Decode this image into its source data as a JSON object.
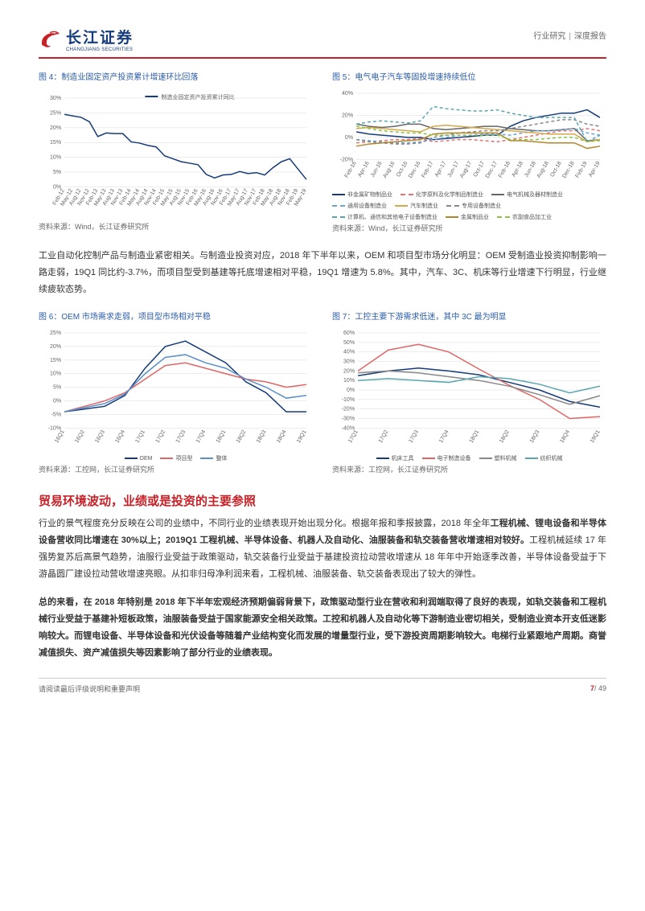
{
  "header": {
    "logo_cn": "长江证券",
    "logo_en": "CHANGJIANG SECURITIES",
    "doc_type_a": "行业研究",
    "doc_type_b": "深度报告"
  },
  "figure4": {
    "title": "图 4：制造业固定资产投资累计增速环比回落",
    "series_label": "制造业固定资产投资累计同比",
    "series_color": "#153b7a",
    "type": "line",
    "ylim": [
      0,
      30
    ],
    "ytick_step": 5,
    "x_labels": [
      "Feb-12",
      "May-12",
      "Aug-12",
      "Nov-12",
      "Feb-13",
      "May-13",
      "Aug-13",
      "Nov-13",
      "Feb-14",
      "May-14",
      "Aug-14",
      "Nov-14",
      "Feb-15",
      "May-15",
      "Aug-15",
      "Nov-15",
      "Feb-16",
      "May-16",
      "Aug-16",
      "Nov-16",
      "Feb-17",
      "May-17",
      "Aug-17",
      "Nov-17",
      "Feb-18",
      "May-18",
      "Aug-18",
      "Nov-18",
      "Feb-19",
      "May-19"
    ],
    "values": [
      24.5,
      24.0,
      23.5,
      22.0,
      17.0,
      18.2,
      18.0,
      18.0,
      15.2,
      14.8,
      14.0,
      13.5,
      10.5,
      9.5,
      8.5,
      8.0,
      7.5,
      4.2,
      3.0,
      4.0,
      4.2,
      5.2,
      4.5,
      4.8,
      4.0,
      6.5,
      8.5,
      9.5,
      6.0,
      2.5
    ],
    "grid_color": "#d9d9d9",
    "axis_color": "#888",
    "tick_font": 7,
    "source": "资料来源：Wind，长江证券研究所"
  },
  "figure5": {
    "title": "图 5：电气电子汽车等固投增速持续低位",
    "type": "multiline",
    "ylim": [
      -20,
      40
    ],
    "ytick_step": 20,
    "x_labels": [
      "Feb-16",
      "Apr-16",
      "Jun-16",
      "Aug-16",
      "Oct-16",
      "Dec-16",
      "Feb-17",
      "Apr-17",
      "Jun-17",
      "Aug-17",
      "Oct-17",
      "Dec-17",
      "Feb-18",
      "Apr-18",
      "Jun-18",
      "Aug-18",
      "Oct-18",
      "Dec-18",
      "Feb-19",
      "Apr-19"
    ],
    "series": [
      {
        "name": "非金属矿物制品业",
        "color": "#153b7a",
        "dash": "solid",
        "values": [
          5,
          3,
          2,
          1,
          0,
          0,
          -2,
          -1,
          0,
          1,
          2,
          2,
          10,
          15,
          18,
          20,
          22,
          22,
          25,
          18
        ]
      },
      {
        "name": "化学原料及化学制品制造业",
        "color": "#e57373",
        "dash": "dashed",
        "values": [
          -5,
          -4,
          -3,
          -2,
          -2,
          -1,
          -4,
          -3,
          -2,
          -2,
          -3,
          -4,
          -2,
          0,
          2,
          4,
          6,
          6,
          8,
          6
        ]
      },
      {
        "name": "电气机械及器材制造业",
        "color": "#666",
        "dash": "solid",
        "values": [
          12,
          10,
          9,
          10,
          12,
          12,
          8,
          7,
          8,
          9,
          10,
          10,
          8,
          7,
          6,
          6,
          7,
          8,
          -3,
          -2
        ]
      },
      {
        "name": "通用设备制造业",
        "color": "#6aa5d9",
        "dash": "dashed",
        "values": [
          -2,
          -3,
          -4,
          -5,
          -5,
          -4,
          -2,
          0,
          2,
          2,
          3,
          3,
          2,
          4,
          6,
          6,
          7,
          8,
          4,
          2
        ]
      },
      {
        "name": "汽车制造业",
        "color": "#d4a84b",
        "dash": "solid",
        "values": [
          8,
          9,
          8,
          7,
          6,
          5,
          10,
          11,
          10,
          9,
          8,
          7,
          6,
          5,
          4,
          3,
          3,
          3,
          -4,
          -2
        ]
      },
      {
        "name": "专用设备制造业",
        "color": "#888",
        "dash": "dashed",
        "values": [
          -2,
          -4,
          -5,
          -6,
          -6,
          -5,
          0,
          2,
          4,
          5,
          6,
          6,
          8,
          10,
          12,
          14,
          16,
          16,
          12,
          10
        ]
      },
      {
        "name": "计算机、通信和其他电子设备制造业",
        "color": "#5aa6b0",
        "dash": "dashed",
        "values": [
          12,
          14,
          15,
          14,
          13,
          15,
          28,
          26,
          25,
          24,
          24,
          25,
          22,
          20,
          18,
          18,
          18,
          18,
          -4,
          2
        ]
      },
      {
        "name": "金属制品业",
        "color": "#b2852a",
        "dash": "solid",
        "values": [
          -8,
          -6,
          -5,
          -4,
          -3,
          -2,
          3,
          4,
          4,
          4,
          4,
          4,
          -3,
          -3,
          -4,
          -5,
          -5,
          -5,
          -10,
          -8
        ]
      },
      {
        "name": "农副食品加工业",
        "color": "#8bc34a",
        "dash": "dashed",
        "values": [
          10,
          8,
          6,
          5,
          4,
          4,
          2,
          2,
          2,
          2,
          2,
          2,
          -2,
          -2,
          -2,
          -1,
          0,
          0,
          -4,
          -3
        ]
      }
    ],
    "grid_color": "#d9d9d9",
    "axis_color": "#888",
    "tick_font": 7,
    "source": "资料来源：Wind，长江证券研究所"
  },
  "paragraph1": "工业自动化控制产品与制造业紧密相关。与制造业投资对应，2018 年下半年以来，OEM 和项目型市场分化明显：OEM 受制造业投资抑制影响一路走弱，19Q1 同比约-3.7%，而项目型受到基建等托底增速相对平稳，19Q1 增速为 5.8%。其中，汽车、3C、机床等行业增速下行明显，行业继续疲软态势。",
  "figure6": {
    "title": "图 6：OEM 市场需求走弱，项目型市场相对平稳",
    "type": "multiline",
    "ylim": [
      -10,
      25
    ],
    "ytick_step": 5,
    "x_labels": [
      "16Q1",
      "16Q2",
      "16Q3",
      "16Q4",
      "17Q1",
      "17Q2",
      "17Q3",
      "17Q4",
      "18Q1",
      "18Q2",
      "18Q3",
      "18Q4",
      "19Q1"
    ],
    "series": [
      {
        "name": "OEM",
        "color": "#153b7a",
        "values": [
          -4,
          -3,
          -2,
          2,
          12,
          20,
          22,
          18,
          14,
          7,
          3,
          -4,
          -4
        ]
      },
      {
        "name": "项目型",
        "color": "#e06666",
        "values": [
          -4,
          -2,
          0,
          3,
          8,
          13,
          14,
          12,
          10,
          8,
          7,
          5,
          6
        ]
      },
      {
        "name": "整体",
        "color": "#5a8fc7",
        "values": [
          -4,
          -2.5,
          -1,
          2.5,
          10,
          16,
          17,
          14,
          12,
          8,
          5,
          1,
          2
        ]
      }
    ],
    "grid_color": "#d9d9d9",
    "axis_color": "#888",
    "tick_font": 7,
    "source": "资料来源：工控网，长江证券研究所"
  },
  "figure7": {
    "title": "图 7：工控主要下游需求低迷，其中 3C 最为明显",
    "type": "multiline",
    "ylim": [
      -40,
      60
    ],
    "ytick_step": 10,
    "x_labels": [
      "17Q1",
      "17Q2",
      "17Q3",
      "17Q4",
      "18Q1",
      "18Q2",
      "18Q3",
      "18Q4",
      "19Q1"
    ],
    "series": [
      {
        "name": "机床工具",
        "color": "#153b7a",
        "values": [
          15,
          20,
          23,
          20,
          16,
          8,
          0,
          -12,
          -18
        ]
      },
      {
        "name": "电子制造设备",
        "color": "#e06666",
        "values": [
          20,
          42,
          48,
          40,
          22,
          5,
          -10,
          -30,
          -28
        ]
      },
      {
        "name": "塑料机械",
        "color": "#888",
        "values": [
          18,
          20,
          18,
          14,
          10,
          4,
          -5,
          -15,
          -6
        ]
      },
      {
        "name": "纺织机械",
        "color": "#5aa6b0",
        "values": [
          10,
          12,
          10,
          8,
          14,
          12,
          6,
          -3,
          4
        ]
      }
    ],
    "grid_color": "#d9d9d9",
    "axis_color": "#888",
    "tick_font": 7,
    "source": "资料来源：工控网，长江证券研究所"
  },
  "section_heading": "贸易环境波动，业绩或是投资的主要参照",
  "paragraph2_pre": "行业的景气程度充分反映在公司的业绩中，不同行业的业绩表现开始出现分化。根据年报和季报披露，2018 年全年",
  "paragraph2_bold1": "工程机械、锂电设备和半导体设备营收同比增速在 30%以上；2019Q1 工程机械、半导体设备、机器人及自动化、油服装备和轨交装备营收增速相对较好。",
  "paragraph2_post": "工程机械延续 17 年强势复苏后高景气趋势，油服行业受益于政策驱动，轨交装备行业受益于基建投资拉动营收增速从 18 年年中开始逐季改善，半导体设备受益于下游晶圆厂建设拉动营收增速亮眼。从扣非归母净利润来看，工程机械、油服装备、轨交装备表现出了较大的弹性。",
  "paragraph3_pre": "总的来看，",
  "paragraph3_bold": "在 2018 年特别是 2018 年下半年宏观经济预期偏弱背景下，政策驱动型行业在营收和利润端取得了良好的表现，如轨交装备和工程机械行业受益于基建补短板政策，油服装备受益于国家能源安全相关政策。工控和机器人及自动化等下游制造业密切相关，受制造业资本开支低迷影响较大。而锂电设备、半导体设备和光伏设备等随着产业结构变化而发展的增量型行业，受下游投资周期影响较大。电梯行业紧跟地产周期。商誉减值损失、资产减值损失等因素影响了部分行业的业绩表现。",
  "footer": {
    "note": "请阅读最后评级说明和重要声明",
    "page_cur": "7",
    "page_total": "/ 49"
  }
}
